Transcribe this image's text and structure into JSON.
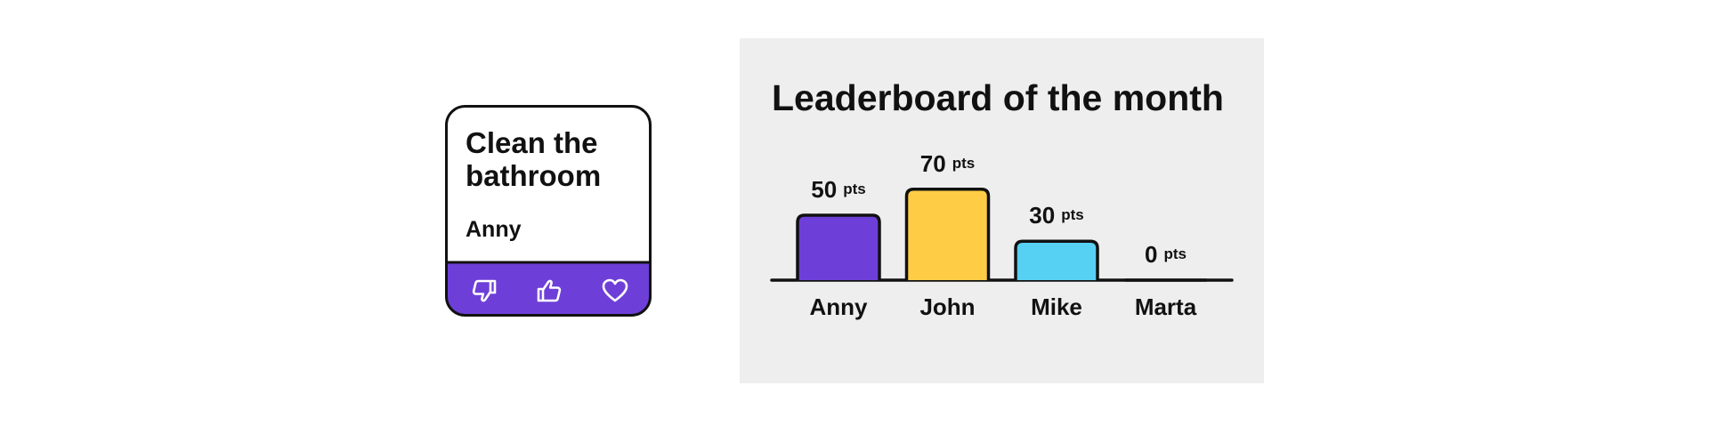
{
  "card": {
    "title_line1": "Clean the",
    "title_line2": "bathroom",
    "assignee": "Anny"
  },
  "chart_data": {
    "type": "bar",
    "title": "Leaderboard of the month",
    "unit": "pts",
    "categories": [
      "Anny",
      "John",
      "Mike",
      "Marta"
    ],
    "values": [
      50,
      70,
      30,
      0
    ],
    "colors": [
      "#6e3fd8",
      "#ffcd45",
      "#56d0f3",
      "#ff8fab"
    ]
  }
}
